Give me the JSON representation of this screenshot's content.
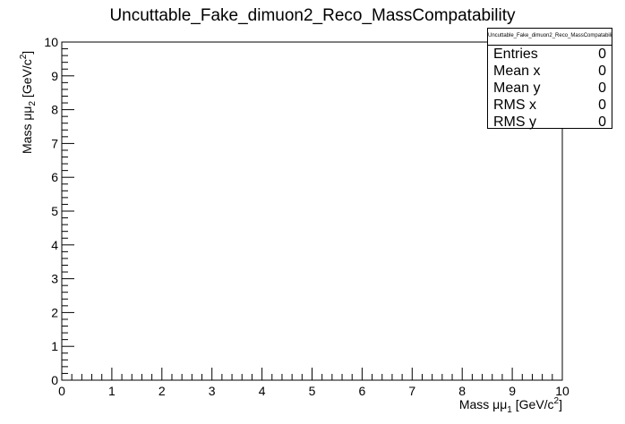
{
  "chart_data": {
    "type": "heatmap",
    "title": "Uncuttable_Fake_dimuon2_Reco_MassCompatability",
    "xlabel": {
      "prefix": "Mass μμ",
      "sub": "1",
      "suffix": " [GeV/c",
      "sup": "2",
      "end": "]"
    },
    "ylabel": {
      "prefix": "Mass μμ",
      "sub": "2",
      "suffix": " [GeV/c",
      "sup": "2",
      "end": "]"
    },
    "xlim": [
      0,
      10
    ],
    "ylim": [
      0,
      10
    ],
    "x_ticks": [
      "0",
      "1",
      "2",
      "3",
      "4",
      "5",
      "6",
      "7",
      "8",
      "9",
      "10"
    ],
    "y_ticks": [
      "0",
      "1",
      "2",
      "3",
      "4",
      "5",
      "6",
      "7",
      "8",
      "9",
      "10"
    ],
    "grid": false,
    "entries": []
  },
  "stats": {
    "title": "Uncuttable_Fake_dimuon2_Reco_MassCompatability",
    "rows": [
      {
        "label": "Entries",
        "value": "0"
      },
      {
        "label": "Mean x",
        "value": "0"
      },
      {
        "label": "Mean y",
        "value": "0"
      },
      {
        "label": "RMS x",
        "value": "0"
      },
      {
        "label": "RMS y",
        "value": "0"
      }
    ]
  }
}
